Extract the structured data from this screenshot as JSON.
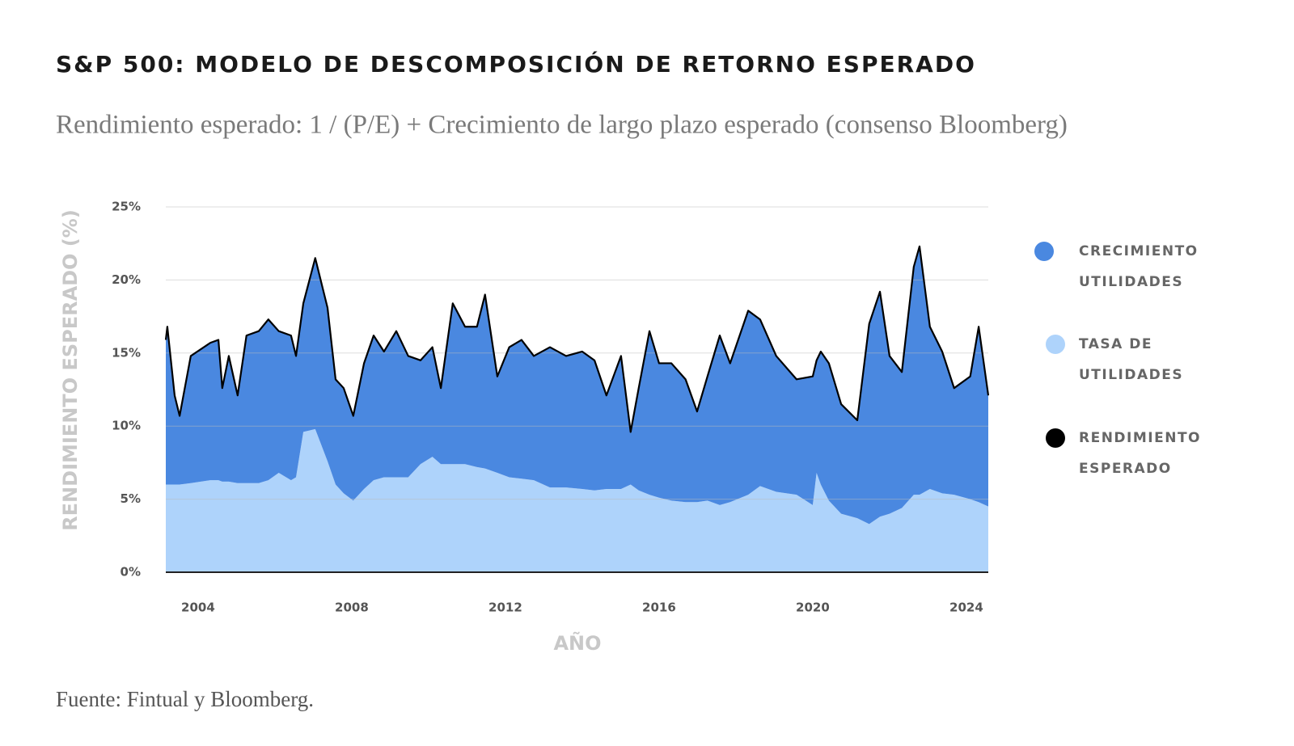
{
  "chart_data": {
    "type": "area",
    "title": "S&P 500: MODELO DE DESCOMPOSICIÓN DE RETORNO ESPERADO",
    "subtitle": "Rendimiento esperado: 1 / (P/E) + Crecimiento de largo plazo esperado (consenso Bloomberg)",
    "source": "Fuente: Fintual y Bloomberg.",
    "x_label": "AÑO",
    "y_label": "RENDIMIENTO ESPERADO (%)",
    "x": [
      2003.16,
      2003.2,
      2003.39,
      2003.52,
      2003.81,
      2004.32,
      2004.53,
      2004.63,
      2004.8,
      2005.03,
      2005.26,
      2005.58,
      2005.83,
      2006.1,
      2006.42,
      2006.55,
      2006.74,
      2007.05,
      2007.37,
      2007.58,
      2007.79,
      2008.04,
      2008.32,
      2008.57,
      2008.84,
      2009.16,
      2009.47,
      2009.79,
      2010.1,
      2010.32,
      2010.63,
      2010.95,
      2011.26,
      2011.47,
      2011.79,
      2012.1,
      2012.42,
      2012.74,
      2013.16,
      2013.58,
      2014.0,
      2014.32,
      2014.63,
      2015.01,
      2015.26,
      2015.47,
      2015.75,
      2016.0,
      2016.32,
      2016.69,
      2016.99,
      2017.26,
      2017.58,
      2017.85,
      2018.32,
      2018.63,
      2019.05,
      2019.58,
      2020.0,
      2020.1,
      2020.21,
      2020.42,
      2020.74,
      2021.16,
      2021.47,
      2021.75,
      2022.0,
      2022.32,
      2022.63,
      2022.78,
      2023.05,
      2023.37,
      2023.68,
      2024.1,
      2024.32,
      2024.57
    ],
    "series": [
      {
        "name": "CRECIMIENTO UTILIDADES",
        "type": "area",
        "color": "#4a88e0",
        "values": [
          9.9,
          10.8,
          6.1,
          4.7,
          8.7,
          9.4,
          9.6,
          6.4,
          8.6,
          6.0,
          10.1,
          10.4,
          11.0,
          9.7,
          9.9,
          8.3,
          8.8,
          11.7,
          10.5,
          7.2,
          7.2,
          5.8,
          8.6,
          9.9,
          8.6,
          10.0,
          8.3,
          7.1,
          7.5,
          5.2,
          11.0,
          9.4,
          9.6,
          11.9,
          6.6,
          8.9,
          9.5,
          8.5,
          9.6,
          9.0,
          9.4,
          8.9,
          6.4,
          9.1,
          3.6,
          7.0,
          11.2,
          9.2,
          9.4,
          8.4,
          6.2,
          8.5,
          11.6,
          9.5,
          12.6,
          11.4,
          9.3,
          7.9,
          8.8,
          7.7,
          9.1,
          9.4,
          7.5,
          6.7,
          13.7,
          15.4,
          10.8,
          9.3,
          15.6,
          17.0,
          11.1,
          9.7,
          7.3,
          8.4,
          12.0,
          7.6
        ]
      },
      {
        "name": "TASA DE UTILIDADES",
        "type": "area",
        "color": "#aed3fb",
        "values": [
          6.0,
          6.0,
          6.0,
          6.0,
          6.1,
          6.3,
          6.3,
          6.2,
          6.2,
          6.1,
          6.1,
          6.1,
          6.3,
          6.8,
          6.3,
          6.5,
          9.6,
          9.8,
          7.6,
          6.0,
          5.4,
          4.9,
          5.7,
          6.3,
          6.5,
          6.5,
          6.5,
          7.4,
          7.9,
          7.4,
          7.4,
          7.4,
          7.2,
          7.1,
          6.8,
          6.5,
          6.4,
          6.3,
          5.8,
          5.8,
          5.7,
          5.6,
          5.7,
          5.7,
          6.0,
          5.6,
          5.3,
          5.1,
          4.9,
          4.8,
          4.8,
          4.9,
          4.6,
          4.8,
          5.3,
          5.9,
          5.5,
          5.3,
          4.6,
          6.8,
          6.0,
          4.9,
          4.0,
          3.7,
          3.3,
          3.8,
          4.0,
          4.4,
          5.3,
          5.3,
          5.7,
          5.4,
          5.3,
          5.0,
          4.8,
          4.5
        ]
      },
      {
        "name": "RENDIMIENTO ESPERADO",
        "type": "line",
        "color": "#000000",
        "values": [
          15.9,
          16.8,
          12.1,
          10.7,
          14.8,
          15.7,
          15.9,
          12.6,
          14.8,
          12.1,
          16.2,
          16.5,
          17.3,
          16.5,
          16.2,
          14.8,
          18.4,
          21.5,
          18.1,
          13.2,
          12.6,
          10.7,
          14.3,
          16.2,
          15.1,
          16.5,
          14.8,
          14.5,
          15.4,
          12.6,
          18.4,
          16.8,
          16.8,
          19.0,
          13.4,
          15.4,
          15.9,
          14.8,
          15.4,
          14.8,
          15.1,
          14.5,
          12.1,
          14.8,
          9.6,
          12.6,
          16.5,
          14.3,
          14.3,
          13.2,
          11.0,
          13.4,
          16.2,
          14.3,
          17.9,
          17.3,
          14.8,
          13.2,
          13.4,
          14.5,
          15.1,
          14.3,
          11.5,
          10.4,
          17.0,
          19.2,
          14.8,
          13.7,
          20.9,
          22.3,
          16.8,
          15.1,
          12.6,
          13.4,
          16.8,
          12.1
        ]
      }
    ],
    "xlim": [
      2003.16,
      2024.57
    ],
    "xticks": [
      2004,
      2008,
      2012,
      2016,
      2020,
      2024
    ],
    "ylim": [
      0,
      25
    ],
    "yticks": [
      {
        "value": 0,
        "label": "0%"
      },
      {
        "value": 5,
        "label": "5%"
      },
      {
        "value": 10,
        "label": "10%"
      },
      {
        "value": 15,
        "label": "15%"
      },
      {
        "value": 20,
        "label": "20%"
      },
      {
        "value": 25,
        "label": "25%"
      }
    ],
    "grid": true,
    "legend": "right"
  }
}
